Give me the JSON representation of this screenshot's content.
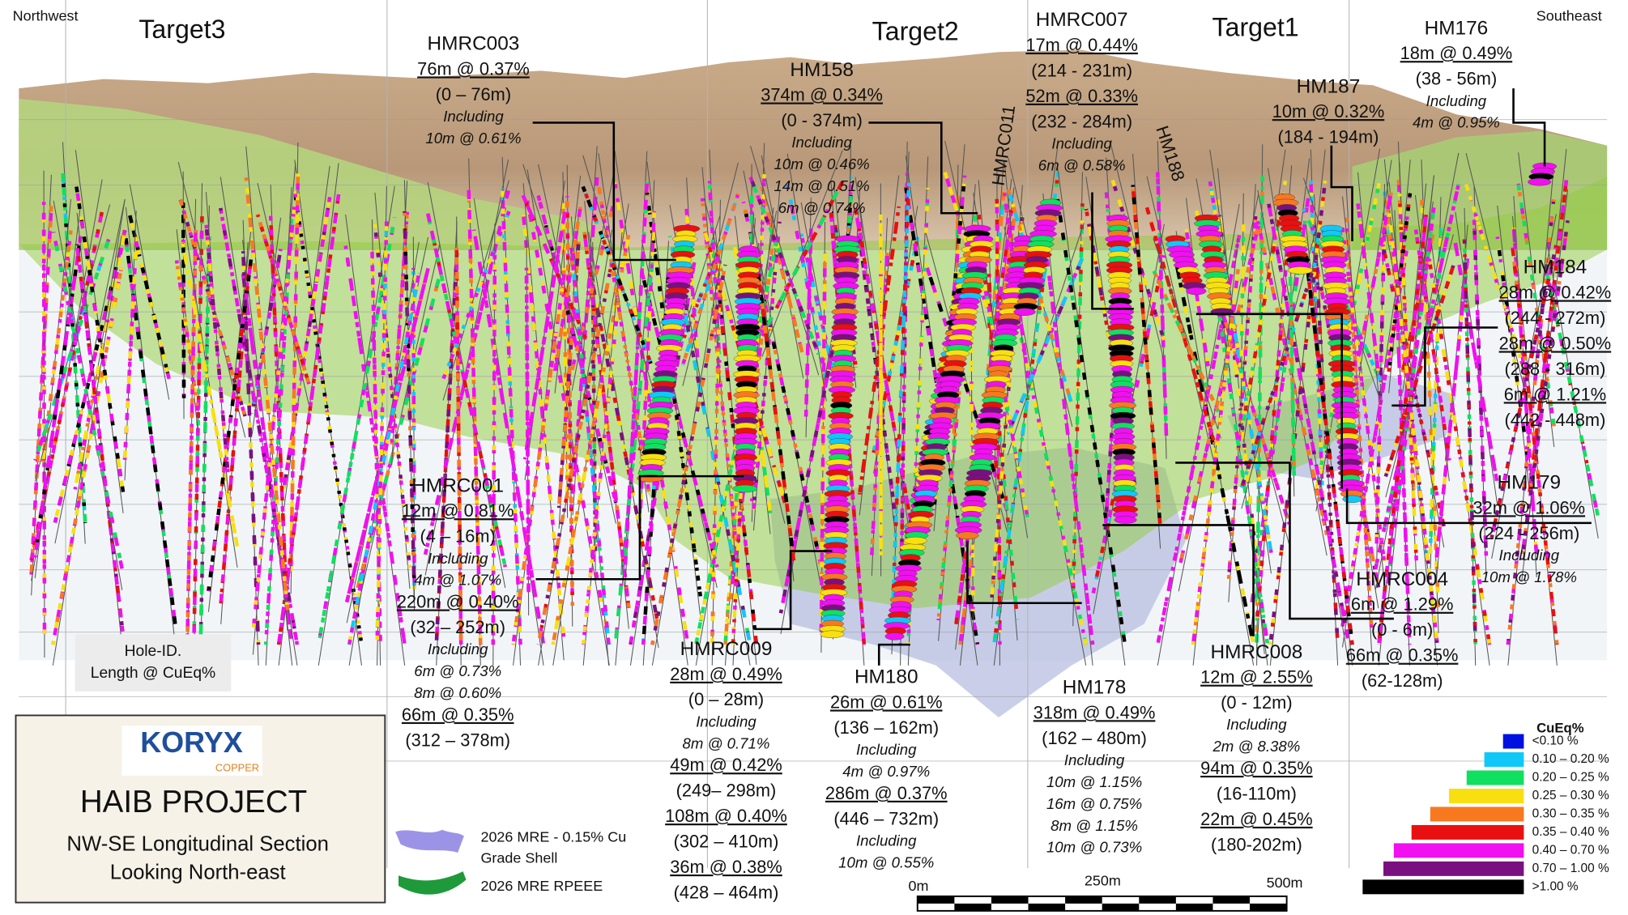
{
  "corners": {
    "left": "Northwest",
    "right": "Southeast"
  },
  "targets": [
    "Target3",
    "Target2",
    "Target1"
  ],
  "rotated_labels": [
    "HMRC011",
    "HM188"
  ],
  "annotations": [
    {
      "hole": "HMRC003",
      "intercepts": [
        {
          "grade": "76m @ 0.37%",
          "range": "(0 – 76m)",
          "including": "Including",
          "subs": [
            "10m @ 0.61%"
          ]
        }
      ]
    },
    {
      "hole": "HM158",
      "intercepts": [
        {
          "grade": "374m @ 0.34%",
          "range": "(0 - 374m)",
          "including": "Including",
          "subs": [
            "10m @ 0.46%",
            "14m @ 0.51%",
            "6m @ 0.74%"
          ]
        }
      ]
    },
    {
      "hole": "HMRC007",
      "intercepts": [
        {
          "grade": "17m @ 0.44%",
          "range": "(214 - 231m)"
        },
        {
          "grade": "52m @ 0.33%",
          "range": "(232 - 284m)",
          "including": "Including",
          "subs": [
            "6m @ 0.58%"
          ]
        }
      ]
    },
    {
      "hole": "HM187",
      "intercepts": [
        {
          "grade": "10m @ 0.32%",
          "range": "(184 - 194m)"
        }
      ]
    },
    {
      "hole": "HM176",
      "intercepts": [
        {
          "grade": "18m @ 0.49%",
          "range": "(38 - 56m)",
          "including": "Including",
          "subs": [
            "4m @ 0.95%"
          ]
        }
      ]
    },
    {
      "hole": "HM184",
      "intercepts": [
        {
          "grade": "28m @ 0.42%",
          "range": "(244 - 272m)"
        },
        {
          "grade": "28m @ 0.50%",
          "range": "(288 - 316m)"
        },
        {
          "grade": "6m @ 1.21%",
          "range": "(442 - 448m)"
        }
      ]
    },
    {
      "hole": "HM179",
      "intercepts": [
        {
          "grade": "32m @ 1.06%",
          "range": "(224 - 256m)",
          "including": "Including",
          "subs": [
            "10m @ 1.78%"
          ]
        }
      ]
    },
    {
      "hole": "HMRC004",
      "intercepts": [
        {
          "grade": "6m @ 1.29%",
          "range": "(0 - 6m)"
        },
        {
          "grade": "66m @ 0.35%",
          "range": "(62-128m)"
        }
      ]
    },
    {
      "hole": "HMRC001",
      "intercepts": [
        {
          "grade": "12m @ 0.81%",
          "range": "(4 – 16m)",
          "including": "Including",
          "subs": [
            "4m @ 1.07%"
          ]
        },
        {
          "grade": "220m @ 0.40%",
          "range": "(32 – 252m)",
          "including": "Including",
          "subs": [
            "6m @ 0.73%",
            "8m @ 0.60%"
          ]
        },
        {
          "grade": "66m @ 0.35%",
          "range": "(312 – 378m)"
        }
      ]
    },
    {
      "hole": "HMRC009",
      "intercepts": [
        {
          "grade": "28m @ 0.49%",
          "range": "(0 – 28m)",
          "including": "Including",
          "subs": [
            "8m @ 0.71%"
          ]
        },
        {
          "grade": "49m @ 0.42%",
          "range": "(249– 298m)"
        },
        {
          "grade": "108m @ 0.40%",
          "range": "(302 – 410m)"
        },
        {
          "grade": "36m @ 0.38%",
          "range": "(428 – 464m)"
        }
      ]
    },
    {
      "hole": "HM180",
      "intercepts": [
        {
          "grade": "26m @ 0.61%",
          "range": "(136 – 162m)",
          "including": "Including",
          "subs": [
            "4m @ 0.97%"
          ]
        },
        {
          "grade": "286m @ 0.37%",
          "range": "(446 – 732m)",
          "including": "Including",
          "subs": [
            "10m @ 0.55%"
          ]
        }
      ]
    },
    {
      "hole": "HM178",
      "intercepts": [
        {
          "grade": "318m @ 0.49%",
          "range": "(162 – 480m)",
          "including": "Including",
          "subs": [
            "10m @ 1.15%",
            "16m @ 0.75%",
            "8m @ 1.15%",
            "10m @ 0.73%"
          ]
        }
      ]
    },
    {
      "hole": "HMRC008",
      "intercepts": [
        {
          "grade": "12m @ 2.55%",
          "range": "(0 - 12m)",
          "including": "Including",
          "subs": [
            "2m @ 8.38%"
          ]
        },
        {
          "grade": "94m @ 0.35%",
          "range": "(16-110m)"
        },
        {
          "grade": "22m @ 0.45%",
          "range": "(180-202m)"
        }
      ]
    }
  ],
  "hole_id_key": [
    "Hole-ID.",
    "Length @ CuEq%"
  ],
  "title_box": {
    "logo": "KORYX",
    "logo_sub": "COPPER",
    "title": "HAIB PROJECT",
    "subtitle": [
      "NW-SE Longitudinal Section",
      "Looking North-east"
    ]
  },
  "shell_legend": [
    {
      "lines": [
        "2026 MRE - 0.15% Cu",
        "Grade Shell"
      ]
    },
    {
      "lines": [
        "2026 MRE RPEEE"
      ]
    }
  ],
  "scale_bar": [
    "0m",
    "250m",
    "500m"
  ],
  "legend": {
    "title": "CuEq%",
    "items": [
      {
        "label": "<0.10 %",
        "color": "#0010e0"
      },
      {
        "label": "0.10 – 0.20 %",
        "color": "#10c8f8"
      },
      {
        "label": "0.20 – 0.25 %",
        "color": "#10e060"
      },
      {
        "label": "0.25 – 0.30 %",
        "color": "#f8e010"
      },
      {
        "label": "0.30 – 0.35 %",
        "color": "#f87820"
      },
      {
        "label": "0.35 – 0.40 %",
        "color": "#e81010"
      },
      {
        "label": "0.40 – 0.70 %",
        "color": "#f010f0"
      },
      {
        "label": "0.70 – 1.00 %",
        "color": "#7a1080"
      },
      {
        "label": ">1.00 %",
        "color": "#000000"
      }
    ]
  }
}
